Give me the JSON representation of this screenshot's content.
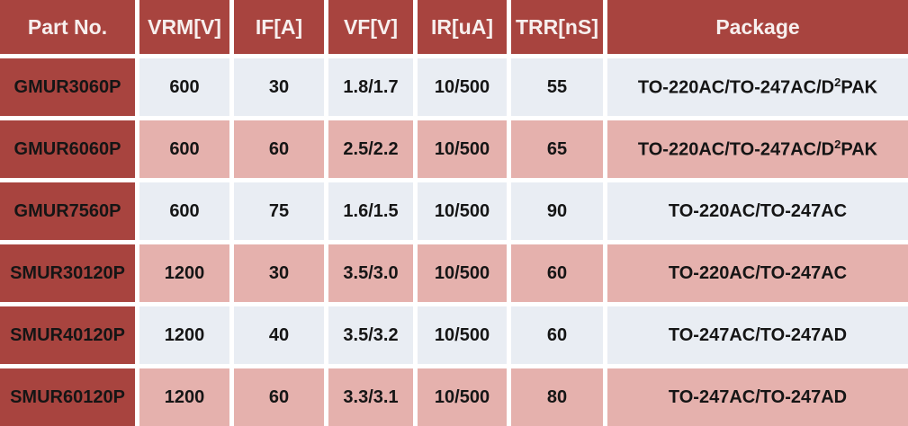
{
  "colors": {
    "header-bg": "#a8443f",
    "part-bg": "#a8443f",
    "header-text": "#f7efee",
    "data-text": "#151515",
    "row-light": "#e9edf3",
    "row-pink": "#e5b1ad",
    "gap-color": "#ffffff"
  },
  "table": {
    "columns": [
      "Part No.",
      "VRM[V]",
      "IF[A]",
      "VF[V]",
      "IR[uA]",
      "TRR[nS]",
      "Package"
    ],
    "rows": [
      [
        "GMUR3060P",
        "600",
        "30",
        "1.8/1.7",
        "10/500",
        "55",
        "TO-220AC/TO-247AC/D²PAK"
      ],
      [
        "GMUR6060P",
        "600",
        "60",
        "2.5/2.2",
        "10/500",
        "65",
        "TO-220AC/TO-247AC/D²PAK"
      ],
      [
        "GMUR7560P",
        "600",
        "75",
        "1.6/1.5",
        "10/500",
        "90",
        "TO-220AC/TO-247AC"
      ],
      [
        "SMUR30120P",
        "1200",
        "30",
        "3.5/3.0",
        "10/500",
        "60",
        "TO-220AC/TO-247AC"
      ],
      [
        "SMUR40120P",
        "1200",
        "40",
        "3.5/3.2",
        "10/500",
        "60",
        "TO-247AC/TO-247AD"
      ],
      [
        "SMUR60120P",
        "1200",
        "60",
        "3.3/3.1",
        "10/500",
        "80",
        "TO-247AC/TO-247AD"
      ]
    ]
  }
}
